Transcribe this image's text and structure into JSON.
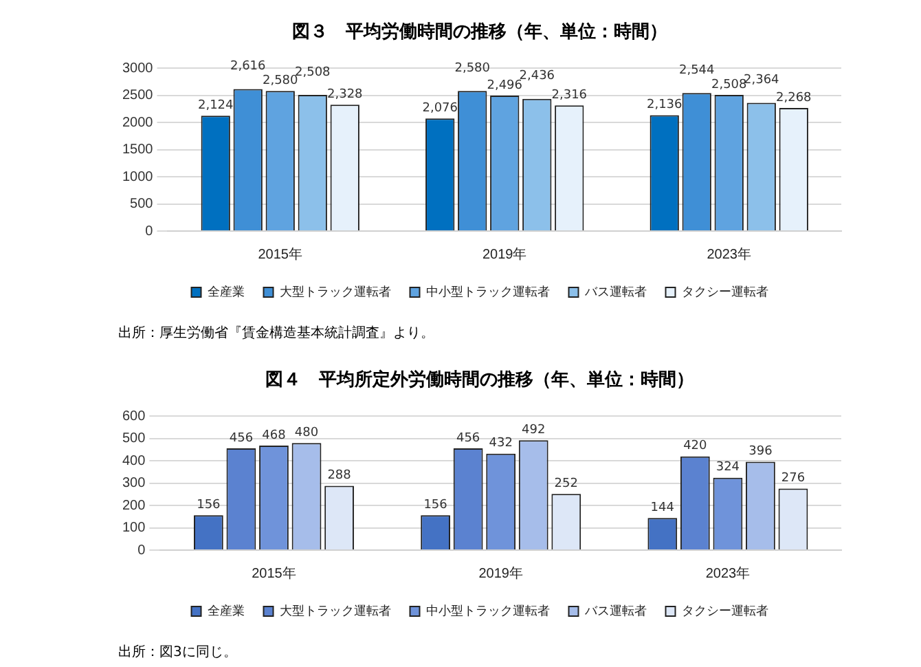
{
  "chart_data": [
    {
      "type": "bar",
      "title": "図３　平均労働時間の推移（年、単位：時間）",
      "categories": [
        "2015年",
        "2019年",
        "2023年"
      ],
      "series": [
        {
          "name": "全産業",
          "color": "#0070c0",
          "values": [
            2124,
            2076,
            2136
          ],
          "value_labels": [
            "2,124",
            "2,076",
            "2,136"
          ]
        },
        {
          "name": "大型トラック運転者",
          "color": "#3f8fd6",
          "values": [
            2616,
            2580,
            2544
          ],
          "value_labels": [
            "2,616",
            "2,580",
            "2,544"
          ]
        },
        {
          "name": "中小型トラック運転者",
          "color": "#5fa3e0",
          "values": [
            2580,
            2496,
            2508
          ],
          "value_labels": [
            "2,580",
            "2,496",
            "2,508"
          ]
        },
        {
          "name": "バス運転者",
          "color": "#8cc0ea",
          "values": [
            2508,
            2436,
            2364
          ],
          "value_labels": [
            "2,508",
            "2,436",
            "2,364"
          ]
        },
        {
          "name": "タクシー運転者",
          "color": "#e6f1fb",
          "values": [
            2328,
            2316,
            2268
          ],
          "value_labels": [
            "2,328",
            "2,316",
            "2,268"
          ]
        }
      ],
      "ylim": [
        0,
        3000
      ],
      "yticks": [
        0,
        500,
        1000,
        1500,
        2000,
        2500,
        3000
      ],
      "grid": "y",
      "legend": "bottom",
      "annotations": [
        "出所：厚生労働省『賃金構造基本統計調査』より。"
      ]
    },
    {
      "type": "bar",
      "title": "図４　平均所定外労働時間の推移（年、単位：時間）",
      "categories": [
        "2015年",
        "2019年",
        "2023年"
      ],
      "series": [
        {
          "name": "全産業",
          "color": "#4472c4",
          "values": [
            156,
            156,
            144
          ]
        },
        {
          "name": "大型トラック運転者",
          "color": "#5b82d0",
          "values": [
            456,
            456,
            420
          ]
        },
        {
          "name": "中小型トラック運転者",
          "color": "#6f93da",
          "values": [
            468,
            432,
            324
          ]
        },
        {
          "name": "バス運転者",
          "color": "#a6bdea",
          "values": [
            480,
            492,
            396
          ]
        },
        {
          "name": "タクシー運転者",
          "color": "#dde7f7",
          "values": [
            288,
            252,
            276
          ]
        }
      ],
      "ylim": [
        0,
        600
      ],
      "yticks": [
        0,
        100,
        200,
        300,
        400,
        500,
        600
      ],
      "grid": "y",
      "legend": "bottom",
      "data_labels": true,
      "annotations": [
        "出所：図3に同じ。"
      ]
    }
  ]
}
